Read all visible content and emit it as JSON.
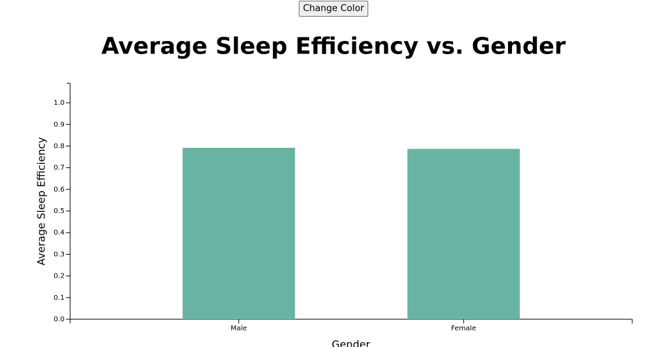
{
  "controls": {
    "button": "Change Color"
  },
  "chart_data": {
    "type": "bar",
    "title": "Average Sleep Efficiency vs. Gender",
    "x_label": "Gender",
    "y_label": "Average Sleep Efficiency",
    "categories": [
      "Male",
      "Female"
    ],
    "values": [
      0.792,
      0.787
    ],
    "color": "#69b3a2",
    "ylim": [
      0,
      1.09
    ],
    "yticks": [
      {
        "value": 0,
        "label": "0.0"
      },
      0.1,
      0.2,
      0.3,
      0.4,
      0.5,
      0.6,
      0.7,
      0.8,
      0.9,
      {
        "value": 1,
        "label": "1.0"
      }
    ],
    "grid": false
  }
}
